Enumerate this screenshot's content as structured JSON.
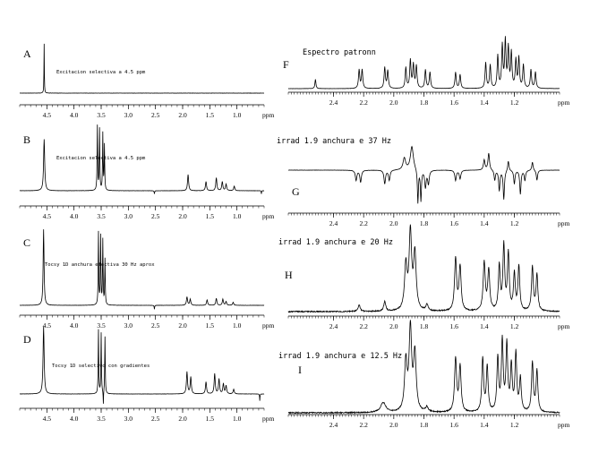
{
  "chart_data": [
    {
      "type": "line",
      "panel_letter": "A",
      "note": "Excitacion selectiva   a 4.5 ppm",
      "xlim": [
        5.0,
        0.5
      ],
      "xlabel": "ppm",
      "ticks": [
        "4.5",
        "4.0",
        "3.5",
        "3.0",
        "2.5",
        "2.0",
        "1.5",
        "1.0"
      ],
      "tick_values": [
        4.5,
        4.0,
        3.5,
        3.0,
        2.5,
        2.0,
        1.5,
        1.0
      ],
      "peaks": [
        {
          "x": 4.55,
          "h": 1.0,
          "w": 0.004
        }
      ]
    },
    {
      "type": "line",
      "panel_letter": "B",
      "note": "Excitacion selectiva   a 4.5 ppm",
      "xlim": [
        5.0,
        0.5
      ],
      "xlabel": "ppm",
      "ticks": [
        "4.5",
        "4.0",
        "3.5",
        "3.0",
        "2.5",
        "2.0",
        "1.5",
        "1.0"
      ],
      "tick_values": [
        4.5,
        4.0,
        3.5,
        3.0,
        2.5,
        2.0,
        1.5,
        1.0
      ],
      "peaks": [
        {
          "x": 4.55,
          "h": 0.8,
          "w": 0.012
        },
        {
          "x": 3.57,
          "h": 1.0,
          "w": 0.006
        },
        {
          "x": 3.53,
          "h": 0.95,
          "w": 0.006
        },
        {
          "x": 3.47,
          "h": 0.88,
          "w": 0.006
        },
        {
          "x": 3.44,
          "h": 0.7,
          "w": 0.006
        },
        {
          "x": 2.52,
          "h": -0.05,
          "w": 0.005
        },
        {
          "x": 1.9,
          "h": 0.25,
          "w": 0.012
        },
        {
          "x": 1.57,
          "h": 0.14,
          "w": 0.012
        },
        {
          "x": 1.38,
          "h": 0.2,
          "w": 0.012
        },
        {
          "x": 1.27,
          "h": 0.14,
          "w": 0.012
        },
        {
          "x": 1.2,
          "h": 0.1,
          "w": 0.012
        },
        {
          "x": 1.05,
          "h": 0.07,
          "w": 0.012
        },
        {
          "x": 0.55,
          "h": -0.05,
          "w": 0.004
        }
      ]
    },
    {
      "type": "line",
      "panel_letter": "C",
      "note": "Tocsy 1D  anchura efectiva  30 Hz aprox",
      "xlim": [
        5.0,
        0.5
      ],
      "xlabel": "ppm",
      "ticks": [
        "4.5",
        "4.0",
        "3.5",
        "3.0",
        "2.5",
        "2.0",
        "1.5",
        "1.0"
      ],
      "tick_values": [
        4.5,
        4.0,
        3.5,
        3.0,
        2.5,
        2.0,
        1.5,
        1.0
      ],
      "peaks": [
        {
          "x": 4.56,
          "h": 1.0,
          "w": 0.01
        },
        {
          "x": 3.55,
          "h": 0.95,
          "w": 0.006
        },
        {
          "x": 3.51,
          "h": 0.9,
          "w": 0.006
        },
        {
          "x": 3.47,
          "h": 0.85,
          "w": 0.006
        },
        {
          "x": 3.43,
          "h": 0.6,
          "w": 0.006
        },
        {
          "x": 2.52,
          "h": -0.05,
          "w": 0.005
        },
        {
          "x": 1.92,
          "h": 0.11,
          "w": 0.012
        },
        {
          "x": 1.86,
          "h": 0.08,
          "w": 0.012
        },
        {
          "x": 1.55,
          "h": 0.07,
          "w": 0.012
        },
        {
          "x": 1.38,
          "h": 0.09,
          "w": 0.012
        },
        {
          "x": 1.26,
          "h": 0.08,
          "w": 0.012
        },
        {
          "x": 1.2,
          "h": 0.05,
          "w": 0.012
        },
        {
          "x": 1.07,
          "h": 0.04,
          "w": 0.012
        }
      ]
    },
    {
      "type": "line",
      "panel_letter": "D",
      "note": "Tocsy 1D  selectivo con gradientes",
      "xlim": [
        5.0,
        0.5
      ],
      "xlabel": "ppm",
      "ticks": [
        "4.5",
        "4.0",
        "3.5",
        "3.0",
        "2.5",
        "2.0",
        "1.5",
        "1.0"
      ],
      "tick_values": [
        4.5,
        4.0,
        3.5,
        3.0,
        2.5,
        2.0,
        1.5,
        1.0
      ],
      "peaks": [
        {
          "x": 4.56,
          "h": 1.0,
          "w": 0.012
        },
        {
          "x": 3.55,
          "h": 0.95,
          "w": 0.006
        },
        {
          "x": 3.5,
          "h": 0.9,
          "w": 0.006
        },
        {
          "x": 3.46,
          "h": -0.2,
          "w": 0.004
        },
        {
          "x": 3.43,
          "h": 0.85,
          "w": 0.006
        },
        {
          "x": 1.92,
          "h": 0.33,
          "w": 0.012
        },
        {
          "x": 1.85,
          "h": 0.25,
          "w": 0.012
        },
        {
          "x": 1.57,
          "h": 0.18,
          "w": 0.012
        },
        {
          "x": 1.41,
          "h": 0.3,
          "w": 0.012
        },
        {
          "x": 1.33,
          "h": 0.22,
          "w": 0.012
        },
        {
          "x": 1.25,
          "h": 0.15,
          "w": 0.012
        },
        {
          "x": 1.2,
          "h": 0.12,
          "w": 0.012
        },
        {
          "x": 1.06,
          "h": 0.07,
          "w": 0.012
        },
        {
          "x": 0.58,
          "h": -0.1,
          "w": 0.004
        }
      ]
    },
    {
      "type": "line",
      "panel_letter": "F",
      "note": "Espectro patronn",
      "xlim": [
        2.7,
        0.9
      ],
      "xlabel": "ppm",
      "ticks": [
        "2.4",
        "2.2",
        "2.0",
        "1.8",
        "1.6",
        "1.4",
        "1.2"
      ],
      "tick_values": [
        2.4,
        2.2,
        2.0,
        1.8,
        1.6,
        1.4,
        1.2
      ],
      "peaks": [
        {
          "x": 2.52,
          "h": 0.2,
          "w": 0.004
        },
        {
          "x": 2.23,
          "h": 0.4,
          "w": 0.005
        },
        {
          "x": 2.21,
          "h": 0.4,
          "w": 0.005
        },
        {
          "x": 2.06,
          "h": 0.45,
          "w": 0.005
        },
        {
          "x": 2.04,
          "h": 0.38,
          "w": 0.005
        },
        {
          "x": 1.92,
          "h": 0.45,
          "w": 0.005
        },
        {
          "x": 1.89,
          "h": 0.6,
          "w": 0.005
        },
        {
          "x": 1.87,
          "h": 0.5,
          "w": 0.005
        },
        {
          "x": 1.85,
          "h": 0.48,
          "w": 0.005
        },
        {
          "x": 1.79,
          "h": 0.4,
          "w": 0.005
        },
        {
          "x": 1.76,
          "h": 0.35,
          "w": 0.005
        },
        {
          "x": 1.59,
          "h": 0.35,
          "w": 0.005
        },
        {
          "x": 1.56,
          "h": 0.3,
          "w": 0.005
        },
        {
          "x": 1.39,
          "h": 0.55,
          "w": 0.005
        },
        {
          "x": 1.36,
          "h": 0.5,
          "w": 0.005
        },
        {
          "x": 1.31,
          "h": 0.7,
          "w": 0.005
        },
        {
          "x": 1.28,
          "h": 0.9,
          "w": 0.005
        },
        {
          "x": 1.26,
          "h": 1.0,
          "w": 0.005
        },
        {
          "x": 1.24,
          "h": 0.85,
          "w": 0.005
        },
        {
          "x": 1.22,
          "h": 0.75,
          "w": 0.005
        },
        {
          "x": 1.19,
          "h": 0.6,
          "w": 0.005
        },
        {
          "x": 1.17,
          "h": 0.65,
          "w": 0.005
        },
        {
          "x": 1.14,
          "h": 0.5,
          "w": 0.005
        },
        {
          "x": 1.09,
          "h": 0.4,
          "w": 0.005
        },
        {
          "x": 1.06,
          "h": 0.35,
          "w": 0.005
        }
      ]
    },
    {
      "type": "line",
      "panel_letter": "G",
      "note": "irrad 1.9 anchura e 37 Hz",
      "xlim": [
        2.7,
        0.9
      ],
      "xlabel": "ppm",
      "ticks": [
        "2.4",
        "2.2",
        "2.0",
        "1.8",
        "1.6",
        "1.4",
        "1.2"
      ],
      "tick_values": [
        2.4,
        2.2,
        2.0,
        1.8,
        1.6,
        1.4,
        1.2
      ],
      "peaks": [
        {
          "x": 2.25,
          "h": -0.3,
          "w": 0.006
        },
        {
          "x": 2.22,
          "h": -0.35,
          "w": 0.006
        },
        {
          "x": 2.06,
          "h": -0.4,
          "w": 0.006
        },
        {
          "x": 2.03,
          "h": -0.3,
          "w": 0.006
        },
        {
          "x": 1.93,
          "h": 0.35,
          "w": 0.01
        },
        {
          "x": 1.88,
          "h": 0.7,
          "w": 0.012
        },
        {
          "x": 1.84,
          "h": -1.0,
          "w": 0.004
        },
        {
          "x": 1.82,
          "h": -0.9,
          "w": 0.004
        },
        {
          "x": 1.79,
          "h": -0.5,
          "w": 0.006
        },
        {
          "x": 1.77,
          "h": -0.4,
          "w": 0.006
        },
        {
          "x": 1.59,
          "h": -0.3,
          "w": 0.006
        },
        {
          "x": 1.56,
          "h": -0.25,
          "w": 0.006
        },
        {
          "x": 1.4,
          "h": 0.3,
          "w": 0.006
        },
        {
          "x": 1.37,
          "h": 0.5,
          "w": 0.006
        },
        {
          "x": 1.33,
          "h": -0.3,
          "w": 0.005
        },
        {
          "x": 1.3,
          "h": -0.6,
          "w": 0.005
        },
        {
          "x": 1.27,
          "h": -0.85,
          "w": 0.005
        },
        {
          "x": 1.24,
          "h": 0.3,
          "w": 0.005
        },
        {
          "x": 1.2,
          "h": -0.4,
          "w": 0.005
        },
        {
          "x": 1.16,
          "h": -0.7,
          "w": 0.005
        },
        {
          "x": 1.13,
          "h": -0.3,
          "w": 0.005
        },
        {
          "x": 1.08,
          "h": 0.25,
          "w": 0.005
        },
        {
          "x": 1.05,
          "h": -0.3,
          "w": 0.005
        }
      ]
    },
    {
      "type": "line",
      "panel_letter": "H",
      "note": "irrad 1.9  anchura e 20 Hz",
      "xlim": [
        2.7,
        0.9
      ],
      "xlabel": "ppm",
      "ticks": [
        "2.4",
        "2.2",
        "2.0",
        "1.8",
        "1.6",
        "1.4",
        "1.2"
      ],
      "tick_values": [
        2.4,
        2.2,
        2.0,
        1.8,
        1.6,
        1.4,
        1.2
      ],
      "peaks": [
        {
          "x": 2.23,
          "h": 0.08,
          "w": 0.008
        },
        {
          "x": 2.06,
          "h": 0.12,
          "w": 0.008
        },
        {
          "x": 1.92,
          "h": 0.55,
          "w": 0.01
        },
        {
          "x": 1.89,
          "h": 0.95,
          "w": 0.01
        },
        {
          "x": 1.86,
          "h": 0.7,
          "w": 0.01
        },
        {
          "x": 1.78,
          "h": 0.08,
          "w": 0.008
        },
        {
          "x": 1.59,
          "h": 0.65,
          "w": 0.008
        },
        {
          "x": 1.56,
          "h": 0.55,
          "w": 0.008
        },
        {
          "x": 1.4,
          "h": 0.6,
          "w": 0.008
        },
        {
          "x": 1.37,
          "h": 0.5,
          "w": 0.008
        },
        {
          "x": 1.3,
          "h": 0.55,
          "w": 0.007
        },
        {
          "x": 1.27,
          "h": 0.8,
          "w": 0.007
        },
        {
          "x": 1.24,
          "h": 0.7,
          "w": 0.007
        },
        {
          "x": 1.2,
          "h": 0.45,
          "w": 0.007
        },
        {
          "x": 1.17,
          "h": 0.55,
          "w": 0.007
        },
        {
          "x": 1.08,
          "h": 0.55,
          "w": 0.007
        },
        {
          "x": 1.05,
          "h": 0.45,
          "w": 0.007
        }
      ]
    },
    {
      "type": "line",
      "panel_letter": "I",
      "note": "irrad 1.9 anchura e 12.5 Hz",
      "xlim": [
        2.7,
        0.9
      ],
      "xlabel": "ppm",
      "ticks": [
        "2.4",
        "2.2",
        "2.0",
        "1.8",
        "1.6",
        "1.4",
        "1.2"
      ],
      "tick_values": [
        2.4,
        2.2,
        2.0,
        1.8,
        1.6,
        1.4,
        1.2
      ],
      "peaks": [
        {
          "x": 2.07,
          "h": 0.12,
          "w": 0.02
        },
        {
          "x": 1.92,
          "h": 0.6,
          "w": 0.01
        },
        {
          "x": 1.89,
          "h": 1.0,
          "w": 0.01
        },
        {
          "x": 1.86,
          "h": 0.7,
          "w": 0.01
        },
        {
          "x": 1.78,
          "h": 0.06,
          "w": 0.01
        },
        {
          "x": 1.59,
          "h": 0.65,
          "w": 0.008
        },
        {
          "x": 1.56,
          "h": 0.55,
          "w": 0.008
        },
        {
          "x": 1.41,
          "h": 0.65,
          "w": 0.007
        },
        {
          "x": 1.38,
          "h": 0.55,
          "w": 0.007
        },
        {
          "x": 1.31,
          "h": 0.65,
          "w": 0.007
        },
        {
          "x": 1.28,
          "h": 0.85,
          "w": 0.007
        },
        {
          "x": 1.25,
          "h": 0.8,
          "w": 0.007
        },
        {
          "x": 1.22,
          "h": 0.55,
          "w": 0.007
        },
        {
          "x": 1.19,
          "h": 0.7,
          "w": 0.007
        },
        {
          "x": 1.16,
          "h": 0.4,
          "w": 0.007
        },
        {
          "x": 1.08,
          "h": 0.6,
          "w": 0.007
        },
        {
          "x": 1.05,
          "h": 0.5,
          "w": 0.007
        }
      ]
    }
  ]
}
